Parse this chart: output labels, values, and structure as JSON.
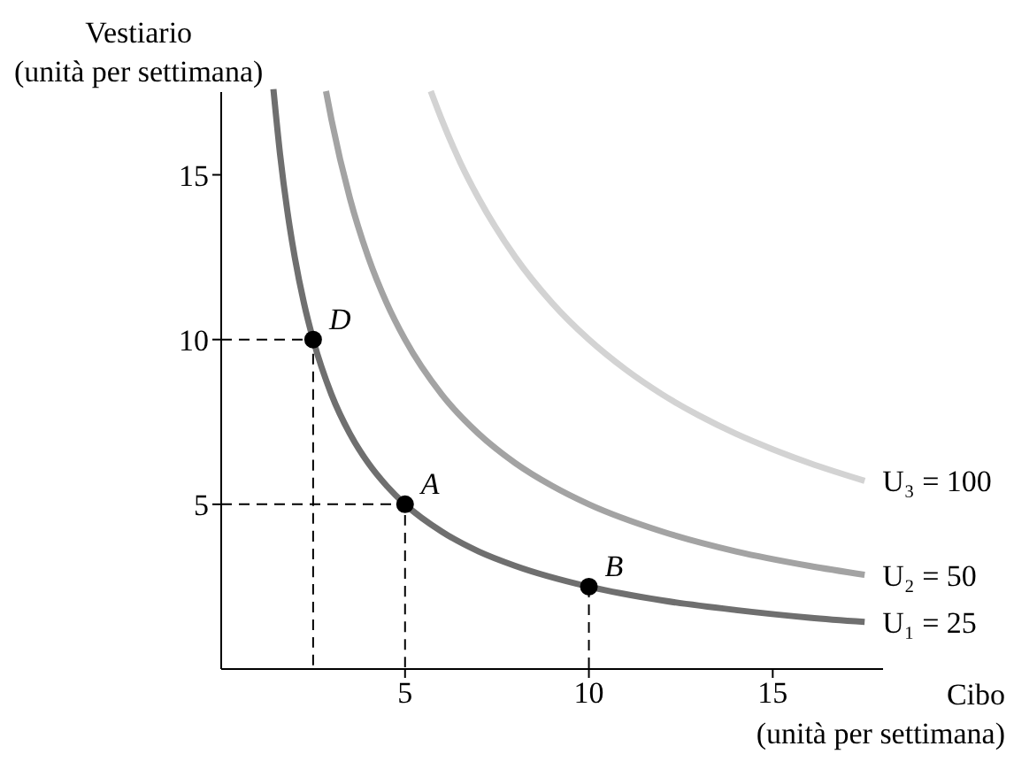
{
  "chart_data": {
    "type": "line",
    "xlabel": "Cibo\n(unità per settimana)",
    "ylabel": "Vestiario\n(unità per settimana)",
    "xlim": [
      0,
      18
    ],
    "ylim": [
      0,
      19.5
    ],
    "xticks": [
      5,
      10,
      15
    ],
    "yticks": [
      5,
      10,
      15
    ],
    "marker": "none",
    "series": [
      {
        "name": "U₃ = 100",
        "color": "#d3d3d3",
        "x": [
          5.7,
          6,
          6.5,
          7,
          8,
          9,
          10,
          11,
          12,
          13,
          14,
          15,
          16,
          17.5
        ],
        "values": [
          17.54,
          16.67,
          15.38,
          14.29,
          12.5,
          11.11,
          10,
          9.09,
          8.33,
          7.69,
          7.14,
          6.67,
          6.25,
          5.71
        ]
      },
      {
        "name": "U₂ = 50",
        "color": "#a3a3a3",
        "x": [
          2.85,
          3,
          3.5,
          4,
          4.5,
          5,
          6,
          7,
          8,
          9,
          10,
          12,
          14,
          16,
          17.5
        ],
        "values": [
          17.54,
          16.67,
          14.29,
          12.5,
          11.11,
          10,
          8.33,
          7.14,
          6.25,
          5.56,
          5,
          4.17,
          3.57,
          3.13,
          2.86
        ]
      },
      {
        "name": "U₁ = 25",
        "color": "#6f6f6f",
        "x": [
          1.42,
          1.6,
          1.8,
          2,
          2.25,
          2.5,
          3,
          3.5,
          4,
          4.5,
          5,
          6,
          7,
          8,
          10,
          12,
          14,
          16,
          17.5
        ],
        "values": [
          17.6,
          15.63,
          13.89,
          12.5,
          11.11,
          10,
          8.33,
          7.14,
          6.25,
          5.56,
          5,
          4.17,
          3.57,
          3.13,
          2.5,
          2.08,
          1.79,
          1.56,
          1.43
        ]
      },
      {
        "color": "#000000",
        "line_style": "dashed",
        "x": [
          0,
          2.5,
          2.5
        ],
        "values": [
          10,
          10,
          0
        ]
      },
      {
        "color": "#000000",
        "line_style": "dashed",
        "x": [
          0,
          5,
          5
        ],
        "values": [
          5,
          5,
          0
        ]
      },
      {
        "color": "#000000",
        "line_style": "dashed",
        "x": [
          10,
          10
        ],
        "values": [
          2.5,
          0
        ]
      },
      {
        "type": "scatter",
        "color": "#000000",
        "marker": "circle",
        "x": [
          2.5,
          5,
          10
        ],
        "values": [
          10,
          5,
          2.5
        ]
      }
    ],
    "annotations": [
      {
        "text": "D",
        "x": 2.5,
        "y": 10
      },
      {
        "text": "A",
        "x": 5,
        "y": 5
      },
      {
        "text": "B",
        "x": 10,
        "y": 2.5
      }
    ]
  }
}
